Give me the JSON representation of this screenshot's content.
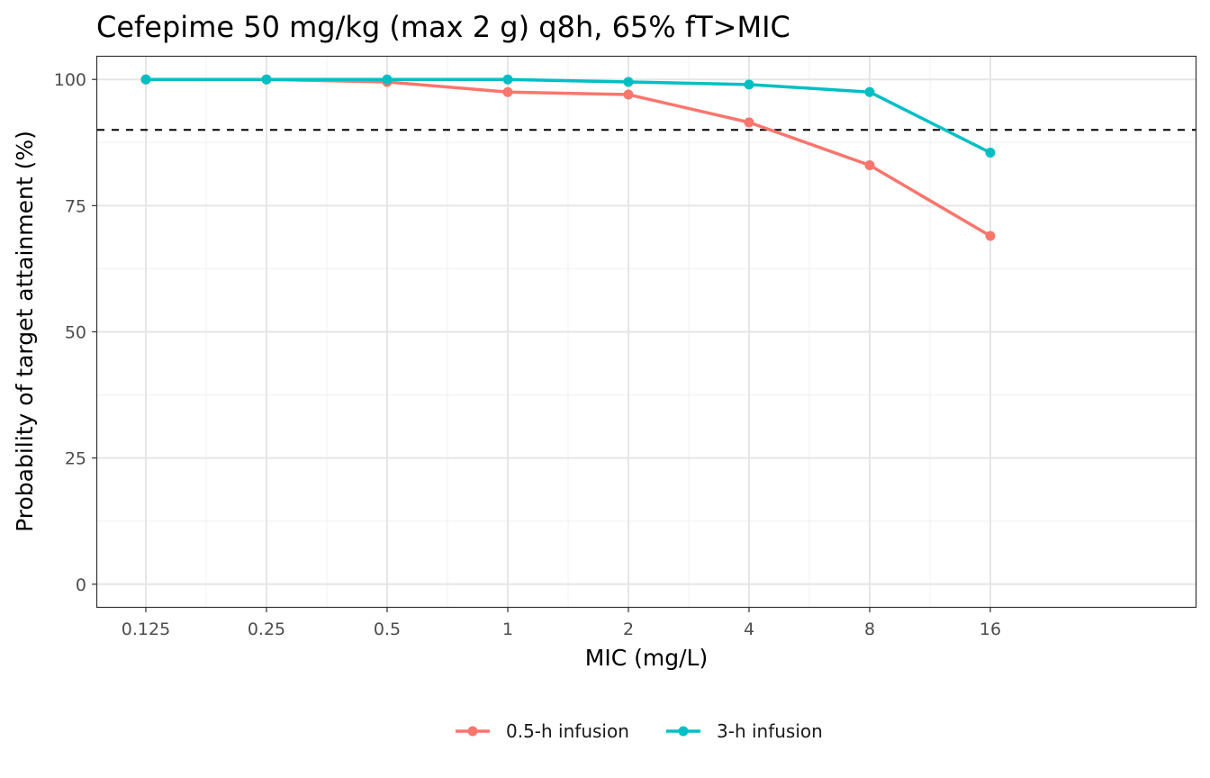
{
  "chart_data": {
    "type": "line",
    "title": "Cefepime 50 mg/kg (max 2 g) q8h, 65% fT>MIC",
    "xlabel": "MIC (mg/L)",
    "ylabel": "Probability of target attainment (%)",
    "x_scale": "log2",
    "categories": [
      "0.125",
      "0.25",
      "0.5",
      "1",
      "2",
      "4",
      "8",
      "16"
    ],
    "x": [
      0.125,
      0.25,
      0.5,
      1,
      2,
      4,
      8,
      16
    ],
    "ylim": [
      -4.5,
      104.5
    ],
    "yticks": [
      0,
      25,
      50,
      75,
      100
    ],
    "grid": true,
    "reference_line": {
      "y": 90,
      "style": "dashed",
      "color": "#000000"
    },
    "legend_position": "bottom",
    "series": [
      {
        "name": "0.5-h infusion",
        "color": "#F8766D",
        "values": [
          100,
          100,
          99.5,
          97.5,
          97,
          91.5,
          83,
          69
        ]
      },
      {
        "name": "3-h infusion",
        "color": "#00BFC4",
        "values": [
          100,
          100,
          100,
          100,
          99.5,
          99,
          97.5,
          85.5
        ]
      }
    ]
  }
}
